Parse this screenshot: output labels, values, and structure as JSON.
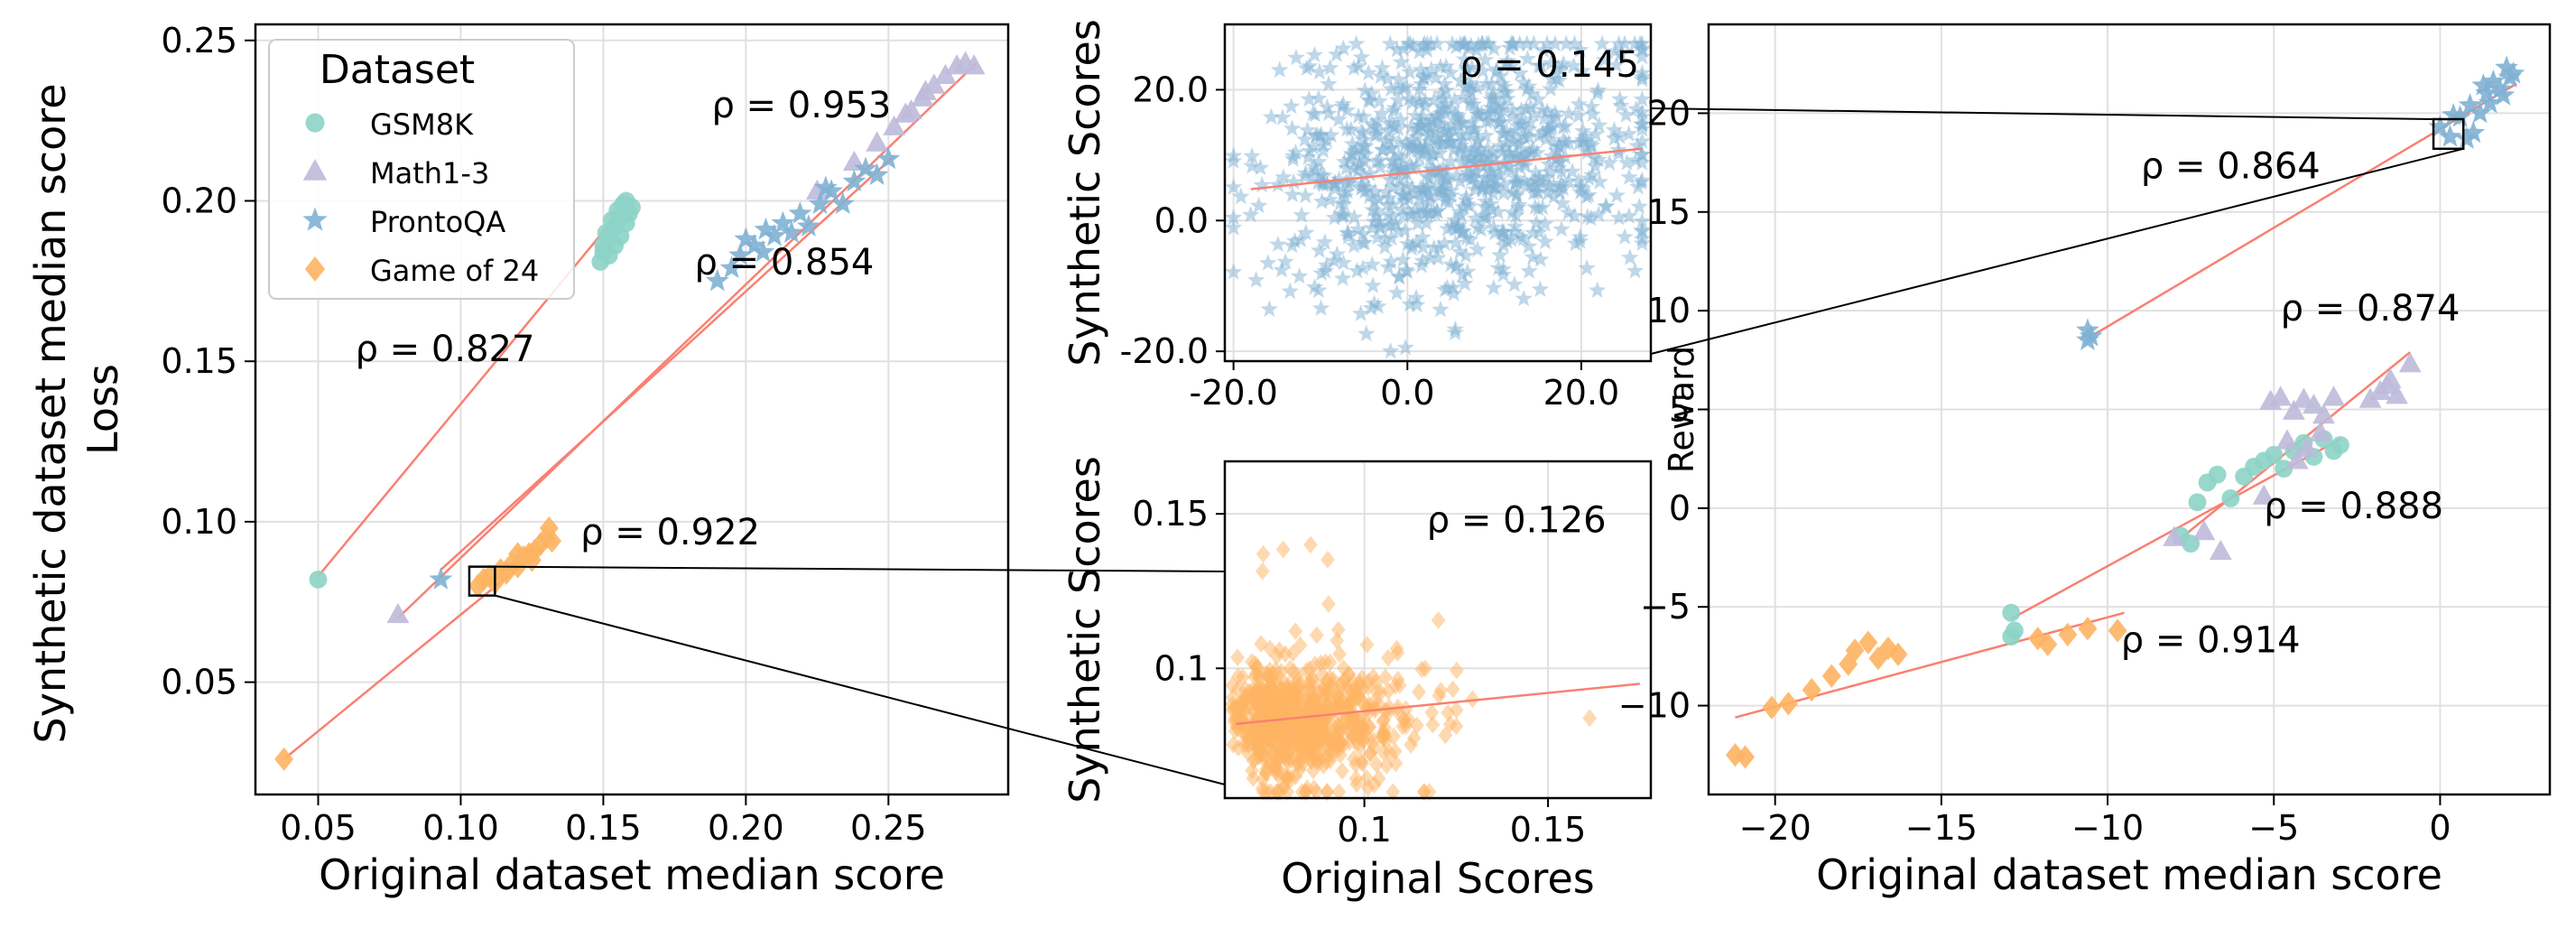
{
  "figure": {
    "ylabel_outer": "Synthetic dataset median score",
    "colors": {
      "GSM8K": "#8dd3c7",
      "Math1-3": "#bebada",
      "ProntoQA": "#80b1d3",
      "Game of 24": "#fdb462",
      "fit": "#fa8072",
      "grid": "#e0e0e0",
      "connector": "#000000"
    },
    "markers": {
      "GSM8K": "circle",
      "Math1-3": "triangle",
      "ProntoQA": "star",
      "Game of 24": "diamond"
    }
  },
  "chart_data": [
    {
      "id": "loss",
      "type": "scatter",
      "title": "",
      "xlabel": "Original dataset median score",
      "ylabel": "Loss",
      "xlim": [
        0.028,
        0.292
      ],
      "ylim": [
        0.015,
        0.255
      ],
      "xticks": [
        0.05,
        0.1,
        0.15,
        0.2,
        0.25
      ],
      "xtick_labels": [
        "0.05",
        "0.10",
        "0.15",
        "0.20",
        "0.25"
      ],
      "yticks": [
        0.05,
        0.1,
        0.15,
        0.2,
        0.25
      ],
      "ytick_labels": [
        "0.05",
        "0.10",
        "0.15",
        "0.20",
        "0.25"
      ],
      "grid": true,
      "legend": {
        "title": "Dataset",
        "position": "top-left",
        "entries": [
          "GSM8K",
          "Math1-3",
          "ProntoQA",
          "Game of 24"
        ]
      },
      "series": [
        {
          "name": "GSM8K",
          "points": [
            [
              0.05,
              0.082
            ],
            [
              0.149,
              0.181
            ],
            [
              0.15,
              0.186
            ],
            [
              0.151,
              0.19
            ],
            [
              0.152,
              0.188
            ],
            [
              0.153,
              0.194
            ],
            [
              0.154,
              0.192
            ],
            [
              0.155,
              0.197
            ],
            [
              0.156,
              0.195
            ],
            [
              0.157,
              0.199
            ],
            [
              0.158,
              0.2
            ],
            [
              0.159,
              0.196
            ],
            [
              0.16,
              0.198
            ],
            [
              0.154,
              0.186
            ],
            [
              0.152,
              0.183
            ],
            [
              0.156,
              0.189
            ],
            [
              0.158,
              0.193
            ],
            [
              0.15,
              0.184
            ]
          ],
          "fit": [
            [
              0.05,
              0.083
            ],
            [
              0.158,
              0.199
            ]
          ]
        },
        {
          "name": "Math1-3",
          "points": [
            [
              0.078,
              0.071
            ],
            [
              0.225,
              0.203
            ],
            [
              0.238,
              0.212
            ],
            [
              0.246,
              0.218
            ],
            [
              0.252,
              0.223
            ],
            [
              0.258,
              0.228
            ],
            [
              0.262,
              0.232
            ],
            [
              0.266,
              0.236
            ],
            [
              0.27,
              0.239
            ],
            [
              0.274,
              0.242
            ],
            [
              0.277,
              0.243
            ],
            [
              0.28,
              0.242
            ],
            [
              0.256,
              0.227
            ],
            [
              0.263,
              0.234
            ]
          ],
          "fit": [
            [
              0.078,
              0.07
            ],
            [
              0.281,
              0.243
            ]
          ]
        },
        {
          "name": "ProntoQA",
          "points": [
            [
              0.093,
              0.082
            ],
            [
              0.19,
              0.175
            ],
            [
              0.198,
              0.183
            ],
            [
              0.2,
              0.188
            ],
            [
              0.203,
              0.186
            ],
            [
              0.207,
              0.191
            ],
            [
              0.21,
              0.189
            ],
            [
              0.213,
              0.193
            ],
            [
              0.216,
              0.19
            ],
            [
              0.219,
              0.196
            ],
            [
              0.222,
              0.192
            ],
            [
              0.226,
              0.199
            ],
            [
              0.23,
              0.203
            ],
            [
              0.234,
              0.199
            ],
            [
              0.238,
              0.206
            ],
            [
              0.242,
              0.21
            ],
            [
              0.246,
              0.208
            ],
            [
              0.25,
              0.213
            ],
            [
              0.195,
              0.179
            ],
            [
              0.206,
              0.184
            ],
            [
              0.228,
              0.204
            ]
          ],
          "fit": [
            [
              0.093,
              0.085
            ],
            [
              0.252,
              0.214
            ]
          ]
        },
        {
          "name": "Game of 24",
          "points": [
            [
              0.038,
              0.026
            ],
            [
              0.106,
              0.08
            ],
            [
              0.108,
              0.082
            ],
            [
              0.11,
              0.083
            ],
            [
              0.112,
              0.081
            ],
            [
              0.114,
              0.085
            ],
            [
              0.116,
              0.084
            ],
            [
              0.118,
              0.087
            ],
            [
              0.12,
              0.086
            ],
            [
              0.122,
              0.089
            ],
            [
              0.124,
              0.09
            ],
            [
              0.126,
              0.091
            ],
            [
              0.128,
              0.093
            ],
            [
              0.13,
              0.095
            ],
            [
              0.132,
              0.094
            ],
            [
              0.131,
              0.098
            ],
            [
              0.12,
              0.09
            ],
            [
              0.125,
              0.088
            ]
          ],
          "fit": [
            [
              0.038,
              0.026
            ],
            [
              0.133,
              0.095
            ]
          ]
        }
      ],
      "annotations": [
        {
          "text": "ρ = 0.953",
          "x": 0.188,
          "y": 0.226
        },
        {
          "text": "ρ = 0.854",
          "x": 0.182,
          "y": 0.177
        },
        {
          "text": "ρ = 0.827",
          "x": 0.063,
          "y": 0.15
        },
        {
          "text": "ρ = 0.922",
          "x": 0.142,
          "y": 0.093
        }
      ],
      "zoom_box": {
        "x": [
          0.103,
          0.112
        ],
        "y": [
          0.077,
          0.086
        ]
      }
    },
    {
      "id": "prontoqa_zoom",
      "type": "scatter",
      "title": "",
      "xlabel": "",
      "ylabel": "Synthetic Scores",
      "xlim": [
        -21,
        28
      ],
      "ylim": [
        -21.5,
        30
      ],
      "xticks": [
        -20.0,
        0.0,
        20.0
      ],
      "xtick_labels": [
        "-20.0",
        "0.0",
        "20.0"
      ],
      "yticks": [
        -20.0,
        0.0,
        20.0
      ],
      "ytick_labels": [
        "-20.0",
        "0.0",
        "20.0"
      ],
      "grid": true,
      "series": [
        {
          "name": "ProntoQA",
          "cloud": {
            "n": 900,
            "x_mean": 6,
            "x_sd": 11,
            "x_range": [
              -20,
              27
            ],
            "y_mean": 9,
            "y_sd": 10,
            "y_range": [
              -20,
              27
            ],
            "rho": 0.145,
            "seed": 7
          },
          "fit": [
            [
              -18,
              4.8
            ],
            [
              27,
              11
            ]
          ]
        }
      ],
      "annotations": [
        {
          "text": "ρ = 0.145",
          "x": 6,
          "y": 22
        }
      ]
    },
    {
      "id": "game24_zoom",
      "type": "scatter",
      "title": "",
      "xlabel": "Original Scores",
      "ylabel": "Synthetic Scores",
      "xlim": [
        0.062,
        0.178
      ],
      "ylim": [
        0.058,
        0.167
      ],
      "xticks": [
        0.1,
        0.15
      ],
      "xtick_labels": [
        "0.1",
        "0.15"
      ],
      "yticks": [
        0.1,
        0.15
      ],
      "ytick_labels": [
        "0.1",
        "0.15"
      ],
      "grid": true,
      "series": [
        {
          "name": "Game of 24",
          "cloud": {
            "n": 750,
            "x_mean": 0.083,
            "x_sd": 0.018,
            "x_range": [
              0.064,
              0.176
            ],
            "y_mean": 0.083,
            "y_sd": 0.015,
            "y_range": [
              0.06,
              0.162
            ],
            "rho": 0.126,
            "seed": 11,
            "skew": true
          },
          "fit": [
            [
              0.065,
              0.082
            ],
            [
              0.175,
              0.095
            ]
          ]
        }
      ],
      "annotations": [
        {
          "text": "ρ = 0.126",
          "x": 0.117,
          "y": 0.144
        }
      ]
    },
    {
      "id": "reward",
      "type": "scatter",
      "title": "",
      "xlabel": "Original dataset median score",
      "ylabel": "Reward",
      "xlim": [
        -22,
        3.3
      ],
      "ylim": [
        -14.5,
        24.5
      ],
      "xticks": [
        -20,
        -15,
        -10,
        -5,
        0
      ],
      "xtick_labels": [
        "−20",
        "−15",
        "−10",
        "−5",
        "0"
      ],
      "yticks": [
        -10,
        -5,
        0,
        5,
        10,
        15,
        20
      ],
      "ytick_labels": [
        "−10",
        "−5",
        "0",
        "5",
        "10",
        "15",
        "20"
      ],
      "grid": true,
      "series": [
        {
          "name": "GSM8K",
          "points": [
            [
              -12.9,
              -5.3
            ],
            [
              -12.8,
              -6.2
            ],
            [
              -12.9,
              -6.5
            ],
            [
              -7.8,
              -1.4
            ],
            [
              -7.5,
              -1.8
            ],
            [
              -7.3,
              0.3
            ],
            [
              -7.0,
              1.3
            ],
            [
              -6.7,
              1.7
            ],
            [
              -6.3,
              0.5
            ],
            [
              -5.9,
              1.6
            ],
            [
              -5.6,
              2.1
            ],
            [
              -5.3,
              2.4
            ],
            [
              -5.0,
              2.7
            ],
            [
              -4.7,
              2.0
            ],
            [
              -4.4,
              2.9
            ],
            [
              -4.1,
              3.3
            ],
            [
              -3.8,
              2.6
            ],
            [
              -3.5,
              3.5
            ],
            [
              -3.2,
              2.9
            ],
            [
              -3.0,
              3.2
            ]
          ],
          "fit": [
            [
              -12.9,
              -5.6
            ],
            [
              -3.0,
              3.5
            ]
          ]
        },
        {
          "name": "Math1-3",
          "points": [
            [
              -8.0,
              -1.5
            ],
            [
              -6.6,
              -2.2
            ],
            [
              -7.1,
              -1.2
            ],
            [
              -5.3,
              0.6
            ],
            [
              -5.1,
              5.4
            ],
            [
              -4.8,
              5.6
            ],
            [
              -4.4,
              4.9
            ],
            [
              -4.1,
              5.5
            ],
            [
              -3.8,
              5.2
            ],
            [
              -3.5,
              4.7
            ],
            [
              -3.2,
              5.6
            ],
            [
              -4.6,
              3.4
            ],
            [
              -4.0,
              3.0
            ],
            [
              -3.6,
              3.8
            ],
            [
              -2.1,
              5.5
            ],
            [
              -1.8,
              5.9
            ],
            [
              -1.5,
              6.5
            ],
            [
              -1.3,
              5.7
            ],
            [
              -1.6,
              6.2
            ],
            [
              -0.9,
              7.3
            ],
            [
              -4.3,
              2.4
            ]
          ],
          "fit": [
            [
              -8.0,
              -1.8
            ],
            [
              -0.9,
              7.9
            ]
          ]
        },
        {
          "name": "ProntoQA",
          "points": [
            [
              -10.6,
              8.5
            ],
            [
              -10.6,
              9.0
            ],
            [
              -10.5,
              8.7
            ],
            [
              0.0,
              19.3
            ],
            [
              0.3,
              18.8
            ],
            [
              0.6,
              19.8
            ],
            [
              0.9,
              20.4
            ],
            [
              1.2,
              20.0
            ],
            [
              1.4,
              21.0
            ],
            [
              1.6,
              21.6
            ],
            [
              1.8,
              21.2
            ],
            [
              2.0,
              22.3
            ],
            [
              2.2,
              22.0
            ],
            [
              1.0,
              19.0
            ],
            [
              1.5,
              20.5
            ],
            [
              0.4,
              19.9
            ],
            [
              1.9,
              20.9
            ],
            [
              2.1,
              21.8
            ],
            [
              0.8,
              18.7
            ],
            [
              1.3,
              21.4
            ]
          ],
          "fit": [
            [
              -10.6,
              8.6
            ],
            [
              2.3,
              21.5
            ]
          ]
        },
        {
          "name": "Game of 24",
          "points": [
            [
              -21.2,
              -12.5
            ],
            [
              -20.9,
              -12.6
            ],
            [
              -20.1,
              -10.1
            ],
            [
              -19.6,
              -9.9
            ],
            [
              -18.9,
              -9.2
            ],
            [
              -18.3,
              -8.5
            ],
            [
              -17.8,
              -7.9
            ],
            [
              -17.6,
              -7.2
            ],
            [
              -17.2,
              -6.8
            ],
            [
              -16.9,
              -7.6
            ],
            [
              -16.6,
              -7.1
            ],
            [
              -16.3,
              -7.4
            ],
            [
              -12.1,
              -6.6
            ],
            [
              -11.8,
              -6.9
            ],
            [
              -11.2,
              -6.4
            ],
            [
              -10.6,
              -6.1
            ],
            [
              -9.7,
              -6.2
            ]
          ],
          "fit": [
            [
              -21.2,
              -10.6
            ],
            [
              -9.5,
              -5.3
            ]
          ]
        }
      ],
      "annotations": [
        {
          "text": "ρ = 0.864",
          "x": -9.0,
          "y": 16.7
        },
        {
          "text": "ρ = 0.874",
          "x": -4.8,
          "y": 9.5
        },
        {
          "text": "ρ = 0.888",
          "x": -5.3,
          "y": -0.5
        },
        {
          "text": "ρ = 0.914",
          "x": -9.6,
          "y": -7.3
        }
      ],
      "zoom_box": {
        "x": [
          -0.2,
          0.7
        ],
        "y": [
          18.2,
          19.7
        ]
      }
    }
  ]
}
